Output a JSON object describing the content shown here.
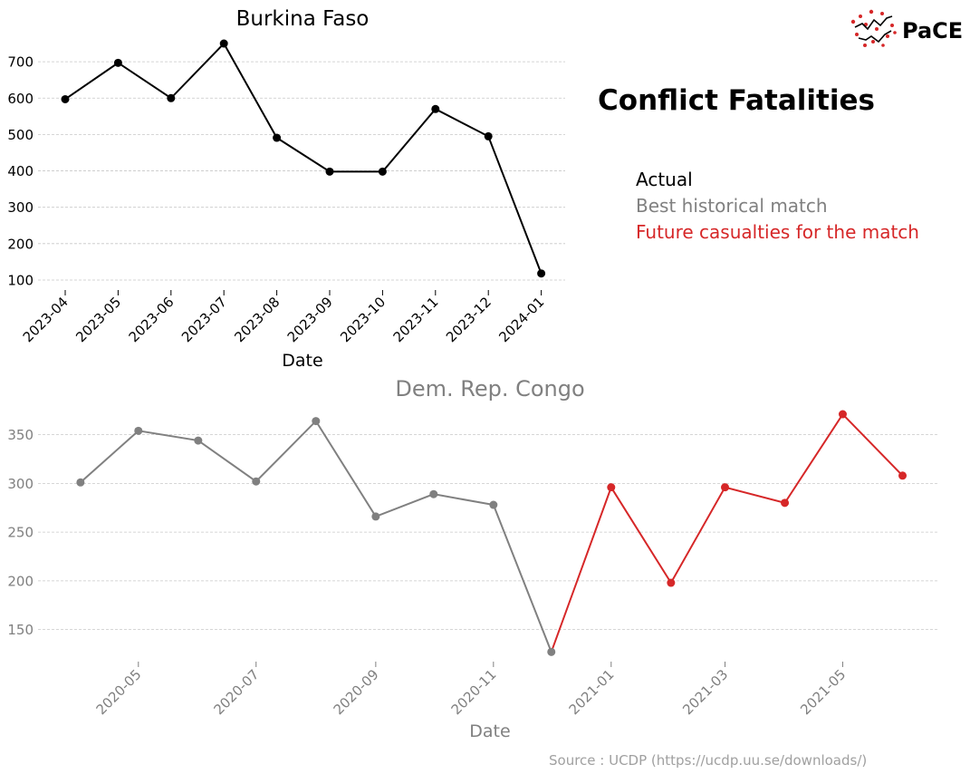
{
  "header": {
    "title": "Conflict Fatalities",
    "logo_text": "PaCE"
  },
  "legend": {
    "actual": "Actual",
    "best_match": "Best historical match",
    "future": "Future casualties for the match"
  },
  "source": "Source : UCDP (https://ucdp.uu.se/downloads/)",
  "colors": {
    "actual": "#000000",
    "match": "#808080",
    "future": "#d62728",
    "grid": "#c8c8c8",
    "source_text": "#a0a0a0"
  },
  "chart_data": [
    {
      "type": "line",
      "title": "Burkina Faso",
      "xlabel": "Date",
      "ylabel": "",
      "grid": "horizontal dashed",
      "ylim": [
        75,
        790
      ],
      "y_ticks": [
        100,
        200,
        300,
        400,
        500,
        600,
        700
      ],
      "categories": [
        "2023-04",
        "2023-05",
        "2023-06",
        "2023-07",
        "2023-08",
        "2023-09",
        "2023-10",
        "2023-11",
        "2023-12",
        "2024-01"
      ],
      "series": [
        {
          "name": "Actual",
          "color": "#000000",
          "values": [
            597,
            697,
            600,
            750,
            491,
            398,
            398,
            570,
            495,
            118
          ]
        }
      ]
    },
    {
      "type": "line",
      "title": "Dem. Rep. Congo",
      "xlabel": "Date",
      "ylabel": "",
      "grid": "horizontal dashed",
      "ylim": [
        118,
        385
      ],
      "y_ticks": [
        150,
        200,
        250,
        300,
        350
      ],
      "x_range": [
        "2020-03-10",
        "2021-06-20"
      ],
      "x_ticks": [
        "2020-05",
        "2020-07",
        "2020-09",
        "2020-11",
        "2021-01",
        "2021-03",
        "2021-05"
      ],
      "series": [
        {
          "name": "Best historical match",
          "color": "#808080",
          "points": [
            [
              "2020-04-01",
              301
            ],
            [
              "2020-05-01",
              354
            ],
            [
              "2020-06-01",
              344
            ],
            [
              "2020-07-01",
              302
            ],
            [
              "2020-08-01",
              364
            ],
            [
              "2020-09-01",
              266
            ],
            [
              "2020-10-01",
              289
            ],
            [
              "2020-11-01",
              278
            ],
            [
              "2020-12-01",
              127
            ]
          ]
        },
        {
          "name": "Future casualties for the match",
          "color": "#d62728",
          "points": [
            [
              "2020-12-01",
              127
            ],
            [
              "2021-01-01",
              296
            ],
            [
              "2021-02-01",
              198
            ],
            [
              "2021-03-01",
              296
            ],
            [
              "2021-04-01",
              280
            ],
            [
              "2021-05-01",
              371
            ],
            [
              "2021-06-01",
              308
            ]
          ]
        }
      ]
    }
  ]
}
